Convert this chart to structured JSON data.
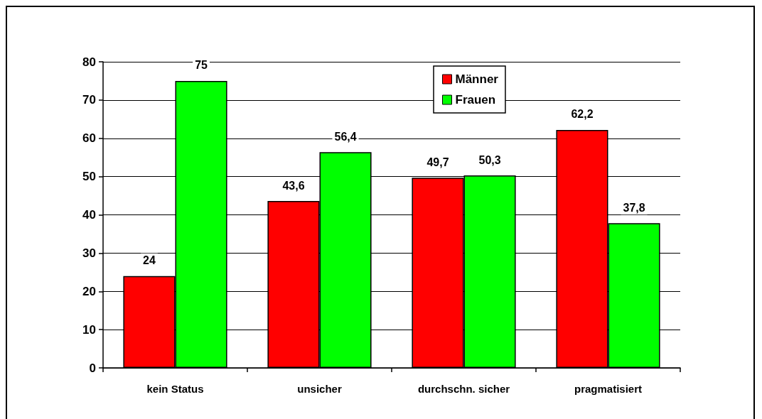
{
  "chart_data": {
    "type": "bar",
    "categories": [
      "kein Status",
      "unsicher",
      "durchschn. sicher",
      "pragmatisiert"
    ],
    "series": [
      {
        "name": "Männer",
        "color": "#ff0000",
        "values": [
          24,
          43.6,
          49.7,
          62.2
        ],
        "value_labels": [
          "24",
          "43,6",
          "49,7",
          "62,2"
        ]
      },
      {
        "name": "Frauen",
        "color": "#00ff00",
        "values": [
          75,
          56.4,
          50.3,
          37.8
        ],
        "value_labels": [
          "75",
          "56,4",
          "50,3",
          "37,8"
        ]
      }
    ],
    "ylim": [
      0,
      80
    ],
    "yticks": [
      0,
      10,
      20,
      30,
      40,
      50,
      60,
      70,
      80
    ],
    "grid": "y",
    "legend": "top"
  }
}
